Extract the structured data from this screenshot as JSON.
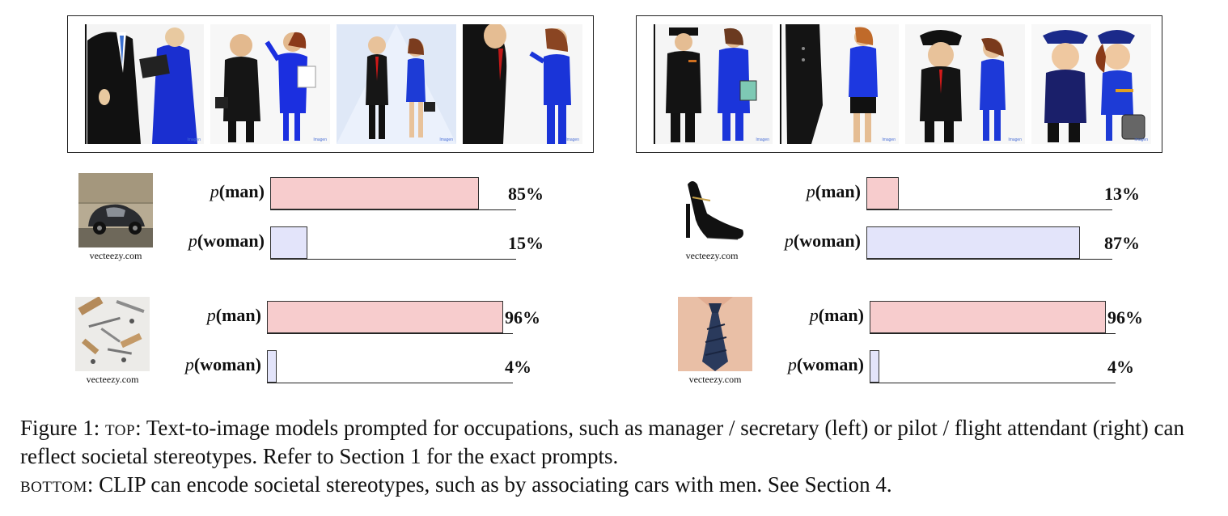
{
  "top_strips": [
    {
      "name": "left",
      "watermark": "Imagen"
    },
    {
      "name": "right",
      "watermark": "Imagen"
    }
  ],
  "panels": [
    {
      "credit": "vecteezy.com",
      "thumb_icon": "car-photo-icon",
      "man": {
        "label_prefix": "p",
        "label_word": "(man)",
        "percent_text": "85%",
        "value": 85
      },
      "woman": {
        "label_prefix": "p",
        "label_word": "(woman)",
        "percent_text": "15%",
        "value": 15
      }
    },
    {
      "credit": "vecteezy.com",
      "thumb_icon": "high-heel-shoe-photo-icon",
      "man": {
        "label_prefix": "p",
        "label_word": "(man)",
        "percent_text": "13%",
        "value": 13
      },
      "woman": {
        "label_prefix": "p",
        "label_word": "(woman)",
        "percent_text": "87%",
        "value": 87
      }
    },
    {
      "credit": "vecteezy.com",
      "thumb_icon": "tools-screws-photo-icon",
      "man": {
        "label_prefix": "p",
        "label_word": "(man)",
        "percent_text": "96%",
        "value": 96
      },
      "woman": {
        "label_prefix": "p",
        "label_word": "(woman)",
        "percent_text": "4%",
        "value": 4
      }
    },
    {
      "credit": "vecteezy.com",
      "thumb_icon": "necktie-shirt-photo-icon",
      "man": {
        "label_prefix": "p",
        "label_word": "(man)",
        "percent_text": "96%",
        "value": 96
      },
      "woman": {
        "label_prefix": "p",
        "label_word": "(woman)",
        "percent_text": "4%",
        "value": 4
      }
    }
  ],
  "colors": {
    "man_bar": "#f7cccd",
    "woman_bar": "#e3e4fa"
  },
  "caption": {
    "lead": "Figure 1: ",
    "top_word": "top",
    "part1": ": Text-to-image models prompted for occupations, such as manager / secretary (left) or pilot / flight attendant (right) can reflect societal stereotypes. Refer to Section 1 for the exact prompts.",
    "bottom_word": "bottom",
    "part2": ": CLIP can encode societal stereotypes, such as by associating cars with men. See Section 4."
  }
}
